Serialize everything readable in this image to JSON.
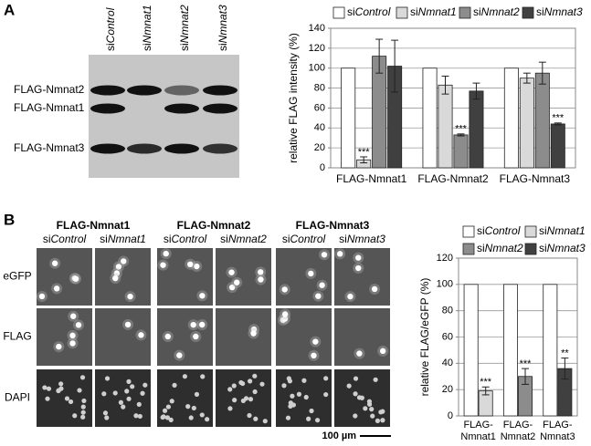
{
  "panels": {
    "a": "A",
    "b": "B"
  },
  "blot": {
    "lanes": [
      "siControl",
      "siNmnat1",
      "siNmnat2",
      "siNmnat3"
    ],
    "bands": [
      "FLAG-Nmnat2",
      "FLAG-Nmnat1",
      "FLAG-Nmnat3"
    ]
  },
  "micrographs": {
    "groups": [
      {
        "title": "FLAG-Nmnat1",
        "columns": [
          "siControl",
          "siNmnat1"
        ]
      },
      {
        "title": "FLAG-Nmnat2",
        "columns": [
          "siControl",
          "siNmnat2"
        ]
      },
      {
        "title": "FLAG-Nmnat3",
        "columns": [
          "siControl",
          "siNmnat3"
        ]
      }
    ],
    "rows": [
      "eGFP",
      "FLAG",
      "DAPI"
    ],
    "scale_bar": "100 µm"
  },
  "chart_data": [
    {
      "type": "bar",
      "ylabel": "relative FLAG intensity (%)",
      "categories": [
        "FLAG-Nmnat1",
        "FLAG-Nmnat2",
        "FLAG-Nmnat3"
      ],
      "series": [
        {
          "name": "siControl",
          "color": "#ffffff",
          "values": [
            100,
            100,
            100
          ]
        },
        {
          "name": "siNmnat1",
          "color": "#d9d9d9",
          "values": [
            8,
            83,
            90
          ],
          "errors": [
            3,
            9,
            5
          ],
          "significance": [
            "***",
            null,
            null
          ]
        },
        {
          "name": "siNmnat2",
          "color": "#8c8c8c",
          "values": [
            112,
            33,
            95
          ],
          "errors": [
            17,
            1,
            11
          ],
          "significance": [
            null,
            "***",
            null
          ]
        },
        {
          "name": "siNmnat3",
          "color": "#404040",
          "values": [
            102,
            77,
            44
          ],
          "errors": [
            26,
            8,
            1
          ],
          "significance": [
            null,
            null,
            "***"
          ]
        }
      ],
      "ylim": [
        0,
        140
      ],
      "yticks": [
        0,
        20,
        40,
        60,
        80,
        100,
        120,
        140
      ],
      "grid": true
    },
    {
      "type": "bar",
      "ylabel": "relative FLAG/eGFP (%)",
      "categories": [
        "FLAG-Nmnat1",
        "FLAG-Nmnat2",
        "FLAG-Nmnat3"
      ],
      "series": [
        {
          "name": "siControl",
          "color": "#ffffff",
          "values": [
            100,
            100,
            100
          ]
        },
        {
          "name": "siNmnat1",
          "color": "#d9d9d9",
          "values": [
            19,
            null,
            null
          ],
          "errors": [
            3,
            null,
            null
          ],
          "significance": [
            "***",
            null,
            null
          ]
        },
        {
          "name": "siNmnat2",
          "color": "#8c8c8c",
          "values": [
            null,
            30,
            null
          ],
          "errors": [
            null,
            6,
            null
          ],
          "significance": [
            null,
            "***",
            null
          ]
        },
        {
          "name": "siNmnat3",
          "color": "#404040",
          "values": [
            null,
            null,
            36
          ],
          "errors": [
            null,
            null,
            8
          ],
          "significance": [
            null,
            null,
            "**"
          ]
        }
      ],
      "ylim": [
        0,
        120
      ],
      "yticks": [
        0,
        20,
        40,
        60,
        80,
        100,
        120
      ],
      "grid": true
    }
  ]
}
